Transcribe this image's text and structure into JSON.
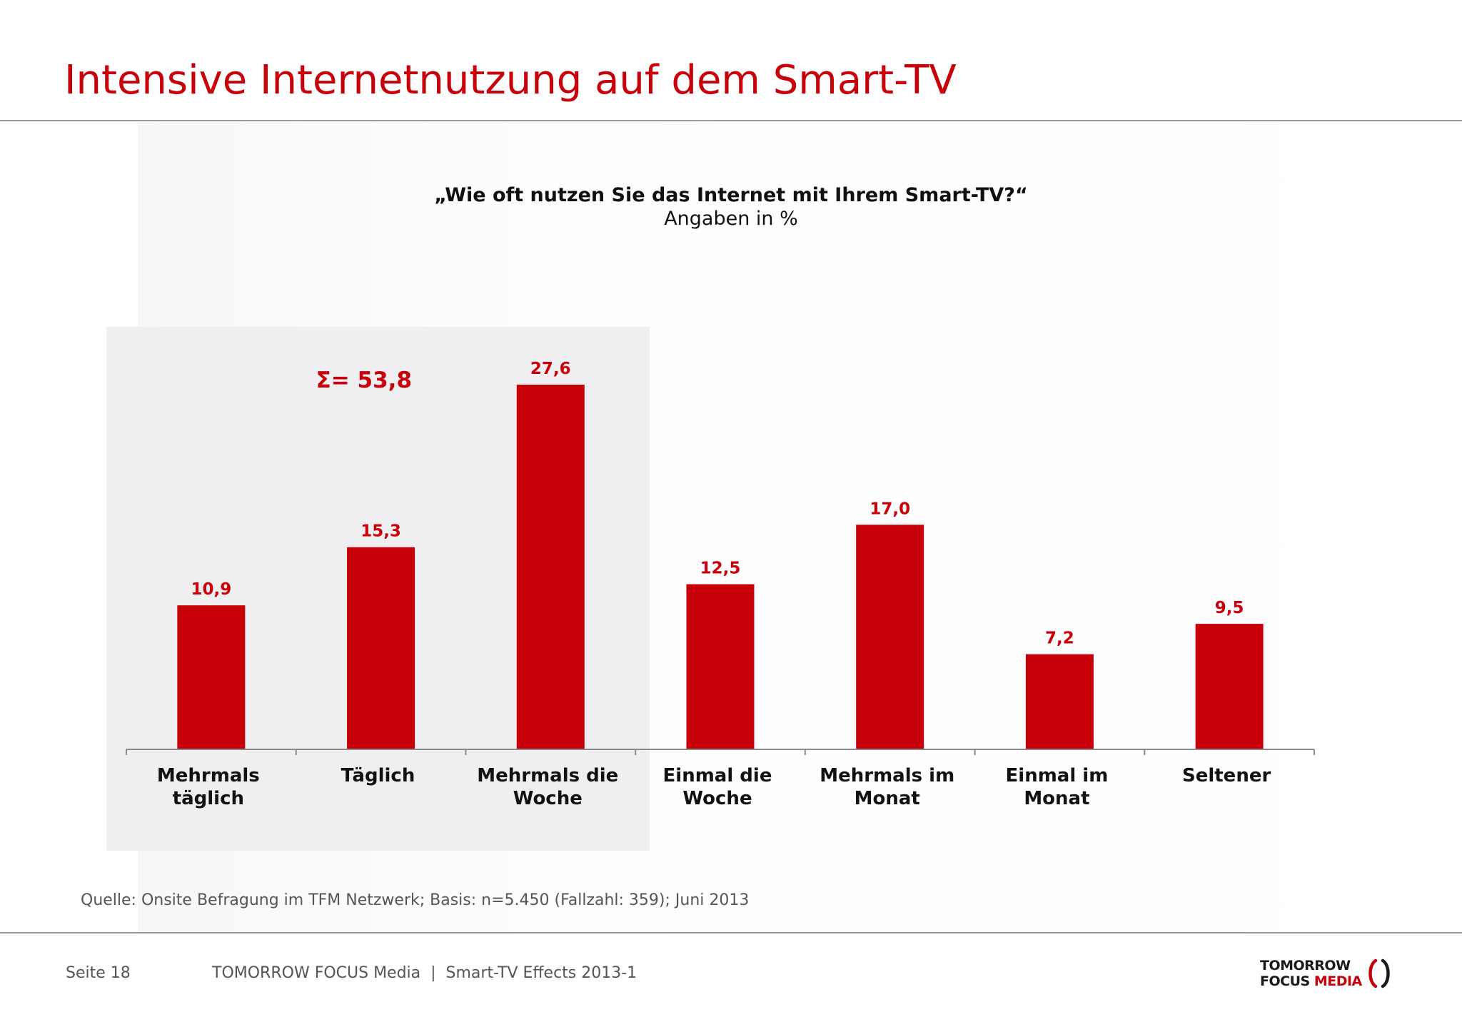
{
  "title": "Intensive Internetnutzung auf dem Smart-TV",
  "question": "„Wie oft nutzen Sie das Internet mit Ihrem Smart-TV?“",
  "subtitle": "Angaben in %",
  "source": "Quelle: Onsite Befragung im TFM Netzwerk; Basis: n=5.450 (Fallzahl: 359); Juni 2013",
  "footer": {
    "page": "Seite 18",
    "doc": "TOMORROW FOCUS Media  |  Smart-TV Effects 2013-1"
  },
  "logo": {
    "line1": "TOMORROW",
    "line2a": "FOCUS ",
    "line2b": "MEDIA"
  },
  "colors": {
    "accent": "#c8000a",
    "highlight_bg": "#efeef0",
    "axis": "#8a8a8a"
  },
  "chart_data": {
    "type": "bar",
    "categories": [
      [
        "Mehrmals",
        "täglich"
      ],
      [
        "Täglich"
      ],
      [
        "Mehrmals die",
        "Woche"
      ],
      [
        "Einmal die",
        "Woche"
      ],
      [
        "Mehrmals im",
        "Monat"
      ],
      [
        "Einmal im",
        "Monat"
      ],
      [
        "Seltener"
      ]
    ],
    "values": [
      10.9,
      15.3,
      27.6,
      12.5,
      17.0,
      7.2,
      9.5
    ],
    "value_labels": [
      "10,9",
      "15,3",
      "27,6",
      "12,5",
      "17,0",
      "7,2",
      "9,5"
    ],
    "ylim": [
      0,
      27.6
    ],
    "highlight": {
      "categories": [
        0,
        1,
        2
      ],
      "label": "Σ= 53,8"
    },
    "grid": false,
    "legend": "none"
  }
}
